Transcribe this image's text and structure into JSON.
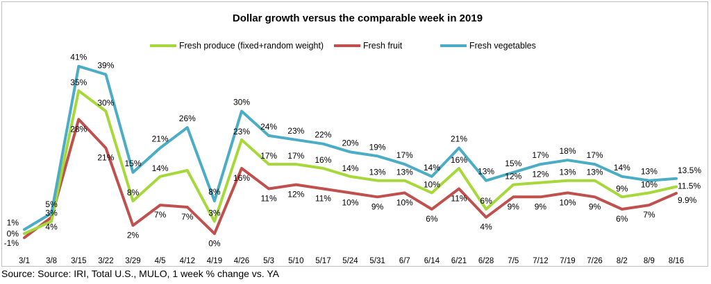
{
  "chart_data": {
    "type": "line",
    "title": "Dollar growth versus the comparable week in 2019",
    "xlabel": "",
    "ylabel": "",
    "ylim": [
      -3,
      44
    ],
    "grid": false,
    "legend_position": "top-center",
    "categories": [
      "3/1",
      "3/8",
      "3/15",
      "3/22",
      "3/29",
      "4/5",
      "4/12",
      "4/19",
      "4/26",
      "5/3",
      "5/10",
      "5/17",
      "5/24",
      "5/31",
      "6/7",
      "6/14",
      "6/21",
      "6/28",
      "7/5",
      "7/12",
      "7/19",
      "7/26",
      "8/2",
      "8/9",
      "8/16"
    ],
    "series": [
      {
        "name": "Fresh produce (fixed+random weight)",
        "color": "#a6d83a",
        "values": [
          0,
          3,
          35,
          30,
          8,
          14,
          15.5,
          3,
          23,
          17,
          17,
          16,
          14,
          13,
          13,
          10,
          16,
          6,
          12,
          12.5,
          13,
          13,
          9,
          10,
          11.5
        ],
        "labels": [
          "0%",
          "3%",
          "35%",
          "30%",
          "8%",
          "14%",
          "",
          "3%",
          "23%",
          "17%",
          "17%",
          "16%",
          "14%",
          "13%",
          "13%",
          "10%",
          "16%",
          "6%",
          "12%",
          "12%",
          "13%",
          "13%",
          "9%",
          "10%",
          "11.5%"
        ]
      },
      {
        "name": "Fresh fruit",
        "color": "#c0504d",
        "values": [
          -1,
          4,
          28,
          21,
          2,
          7,
          6.5,
          0,
          16,
          11,
          12,
          11,
          10,
          9,
          10,
          6,
          11,
          4,
          9,
          9,
          10,
          9,
          6,
          7,
          9.9
        ],
        "labels": [
          "-1%",
          "4%",
          "28%",
          "21%",
          "2%",
          "7%",
          "7%",
          "0%",
          "16%",
          "11%",
          "12%",
          "11%",
          "10%",
          "9%",
          "10%",
          "6%",
          "11%",
          "4%",
          "9%",
          "9%",
          "10%",
          "9%",
          "6%",
          "7%",
          "9.9%"
        ]
      },
      {
        "name": "Fresh vegetables",
        "color": "#4bacc6",
        "values": [
          1,
          5,
          41,
          39,
          15,
          21,
          26,
          8,
          30,
          24,
          23,
          22,
          20,
          19,
          17,
          14,
          21,
          13,
          15,
          17,
          18,
          17,
          14,
          13,
          13.5
        ],
        "labels": [
          "1%",
          "5%",
          "41%",
          "39%",
          "15%",
          "21%",
          "26%",
          "8%",
          "30%",
          "24%",
          "23%",
          "22%",
          "20%",
          "19%",
          "17%",
          "14%",
          "21%",
          "13%",
          "15%",
          "17%",
          "18%",
          "17%",
          "14%",
          "13%",
          "13.5%"
        ]
      }
    ]
  },
  "source": "Source: Source: IRI, Total U.S., MULO, 1 week % change vs. YA"
}
